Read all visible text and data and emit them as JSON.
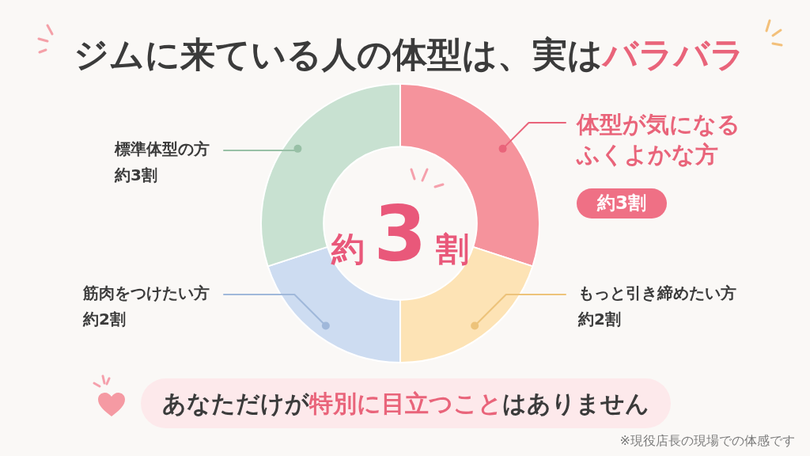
{
  "chart_data": {
    "type": "donut",
    "title": "ジムに来ている人の体型は、実はバラバラ",
    "categories": [
      "体型が気になるふくよかな方",
      "もっと引き締めたい方",
      "筋肉をつけたい方",
      "標準体型の方"
    ],
    "values": [
      3,
      2,
      2,
      3
    ],
    "colors": [
      "#f5939c",
      "#fde3b5",
      "#cddcf1",
      "#c8e1d1"
    ],
    "value_labels": [
      "約3割",
      "約2割",
      "約2割",
      "約3割"
    ],
    "annotations": [
      "約3割",
      "あなただけが特別に目立つことはありません",
      "※現役店長の現場での体感です"
    ]
  }
}
